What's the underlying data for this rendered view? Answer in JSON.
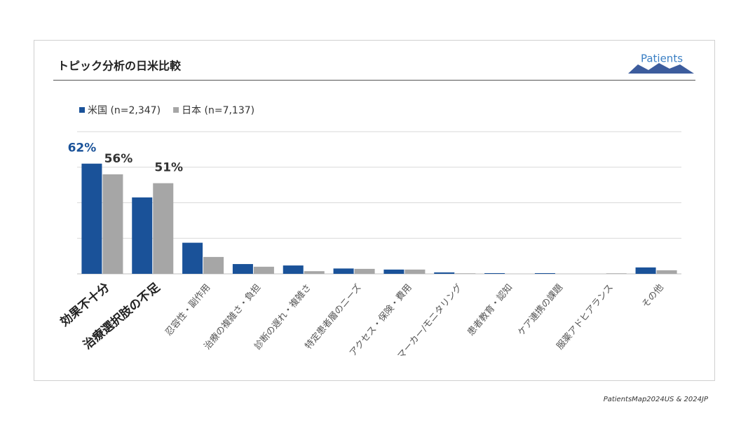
{
  "chart_data": {
    "type": "bar",
    "title": "トピック分析の日米比較",
    "logo": "Patients",
    "source": "PatientsMap2024US & 2024JP",
    "categories": [
      "効果不十分",
      "治療選択肢の不足",
      "忍容性・副作用",
      "治療の複雑さ・負担",
      "診断の遅れ・複雑さ",
      "特定患者層のニーズ",
      "アクセス・保険・費用",
      "マーカー/モニタリング",
      "患者教育・認知",
      "ケア連携の課題",
      "服薬アドヒアランス",
      "その他"
    ],
    "series": [
      {
        "name": "米国 (n=2,347)",
        "color": "#1a5299",
        "values": [
          62,
          43,
          17.5,
          5.5,
          4.7,
          3,
          2.4,
          0.8,
          0.4,
          0.4,
          0,
          3.6
        ],
        "value_labels": [
          "62%",
          null,
          null,
          null,
          null,
          null,
          null,
          null,
          null,
          null,
          null,
          null
        ]
      },
      {
        "name": "日本 (n=7,137)",
        "color": "#a6a6a6",
        "values": [
          56,
          51,
          9.5,
          4,
          1.5,
          2.8,
          2.4,
          0.3,
          0,
          0,
          0.3,
          2
        ],
        "value_labels": [
          "56%",
          "51%",
          null,
          null,
          null,
          null,
          null,
          null,
          null,
          null,
          null,
          null
        ]
      }
    ],
    "ylim": [
      0,
      80
    ],
    "yticks": [
      0,
      20,
      40,
      60,
      80
    ],
    "grid": true,
    "legend": "top-left"
  }
}
